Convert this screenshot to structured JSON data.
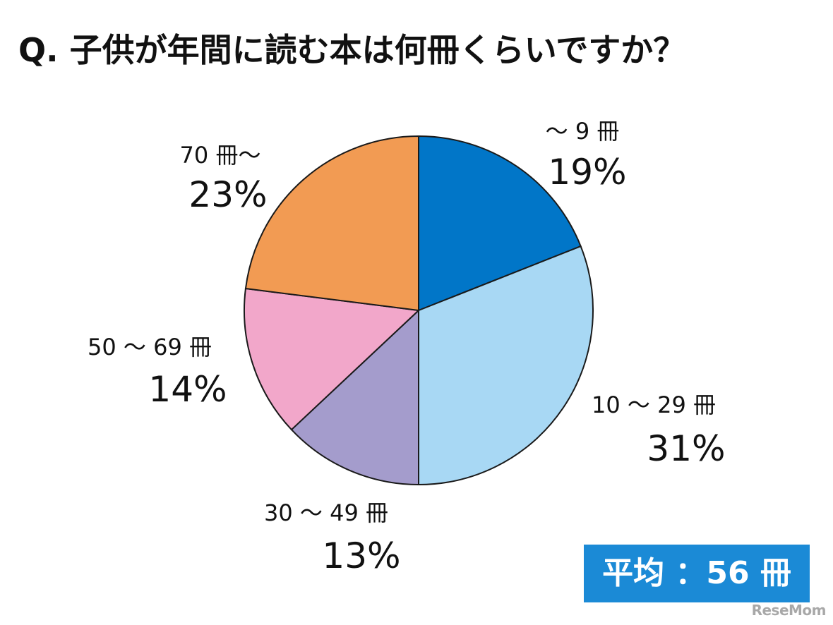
{
  "title": "Q. 子供が年間に読む本は何冊くらいですか？",
  "average": "平均 ：56 冊",
  "watermark": "ReseMom",
  "chart_data": {
    "type": "pie",
    "title": "Q. 子供が年間に読む本は何冊くらいですか？",
    "categories": [
      "～ 9 冊",
      "10 ～ 29 冊",
      "30 ～ 49 冊",
      "50 ～ 69 冊",
      "70 冊～"
    ],
    "values": [
      19,
      31,
      13,
      14,
      23
    ],
    "percent_labels": [
      "19%",
      "31%",
      "13%",
      "14%",
      "23%"
    ],
    "colors": [
      "#0176c8",
      "#a8d8f4",
      "#a49ccc",
      "#f2a7ca",
      "#f29b53"
    ],
    "start_angle": "12 o'clock",
    "direction": "clockwise",
    "legend": "none",
    "labels_placement": "outside"
  }
}
